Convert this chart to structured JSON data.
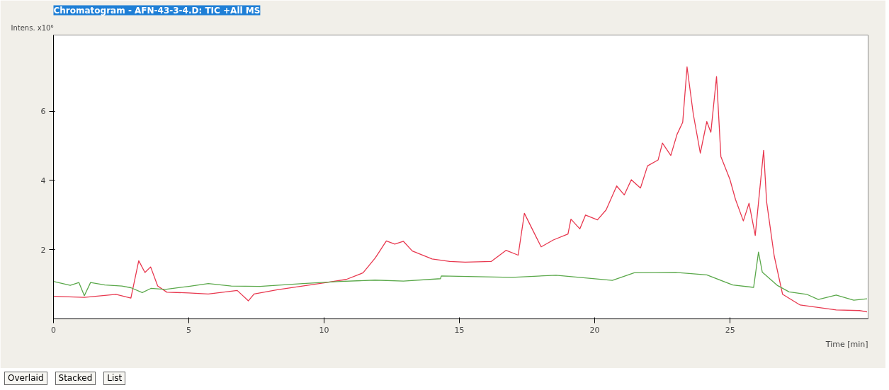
{
  "chart_data": {
    "type": "line",
    "title": "Chromatogram - AFN-43-3-4.D: TIC +All MS",
    "xlabel": "Time [min]",
    "ylabel": "Intens.\nx10⁶",
    "xlim": [
      0,
      30.1
    ],
    "ylim": [
      0,
      8.2
    ],
    "xticks": [
      0,
      5,
      10,
      15,
      20,
      25
    ],
    "yticks": [
      2,
      4,
      6
    ],
    "grid": false,
    "marker": "none",
    "line_style": "solid",
    "annotations": [
      "Overlaid",
      "Stacked",
      "List"
    ],
    "series": [
      {
        "color": "#e8384f",
        "x": [
          0,
          1.14,
          2.31,
          2.86,
          3.15,
          3.38,
          3.59,
          3.85,
          4.19,
          5.0,
          5.72,
          6.79,
          7.2,
          7.41,
          8.27,
          10.0,
          10.82,
          11.44,
          11.89,
          12.3,
          12.61,
          12.93,
          13.26,
          13.99,
          14.64,
          15.21,
          16.18,
          16.72,
          17.17,
          17.4,
          17.82,
          18.02,
          18.47,
          19.01,
          19.12,
          19.45,
          19.66,
          20.1,
          20.42,
          20.81,
          21.09,
          21.35,
          21.69,
          21.95,
          22.34,
          22.5,
          22.81,
          23.04,
          23.25,
          23.41,
          23.64,
          23.9,
          24.14,
          24.29,
          24.5,
          24.66,
          24.99,
          25.2,
          25.49,
          25.7,
          25.93,
          26.24,
          26.35,
          26.63,
          26.94,
          27.59,
          28.92,
          29.78,
          30.06
        ],
        "values": [
          0.65,
          0.62,
          0.71,
          0.6,
          1.68,
          1.34,
          1.5,
          0.95,
          0.77,
          0.75,
          0.72,
          0.82,
          0.52,
          0.72,
          0.84,
          1.04,
          1.14,
          1.33,
          1.76,
          2.25,
          2.16,
          2.24,
          1.96,
          1.73,
          1.66,
          1.64,
          1.66,
          1.98,
          1.84,
          3.05,
          2.39,
          2.08,
          2.28,
          2.45,
          2.88,
          2.6,
          3.0,
          2.86,
          3.15,
          3.84,
          3.58,
          4.02,
          3.78,
          4.42,
          4.59,
          5.08,
          4.72,
          5.33,
          5.68,
          7.28,
          5.92,
          4.79,
          5.7,
          5.39,
          7.0,
          4.69,
          4.04,
          3.45,
          2.83,
          3.34,
          2.41,
          4.87,
          3.38,
          1.82,
          0.71,
          0.4,
          0.26,
          0.24,
          0.2
        ]
      },
      {
        "color": "#5aa84a",
        "x": [
          0,
          0.62,
          0.94,
          1.14,
          1.37,
          1.9,
          2.53,
          2.86,
          3.28,
          3.6,
          4.13,
          5.0,
          5.72,
          6.57,
          7.63,
          9.22,
          10.6,
          11.88,
          12.93,
          14.3,
          14.33,
          16.94,
          18.57,
          20.65,
          21.46,
          22.99,
          24.14,
          25.1,
          25.87,
          26.05,
          26.19,
          26.74,
          27.18,
          27.83,
          28.26,
          28.92,
          29.57,
          30.06
        ],
        "values": [
          1.08,
          0.97,
          1.05,
          0.67,
          1.05,
          0.98,
          0.95,
          0.9,
          0.76,
          0.88,
          0.85,
          0.94,
          1.02,
          0.95,
          0.94,
          1.02,
          1.08,
          1.12,
          1.09,
          1.16,
          1.24,
          1.2,
          1.26,
          1.11,
          1.33,
          1.34,
          1.27,
          0.98,
          0.91,
          1.93,
          1.35,
          0.97,
          0.78,
          0.71,
          0.56,
          0.69,
          0.54,
          0.58
        ]
      }
    ]
  }
}
